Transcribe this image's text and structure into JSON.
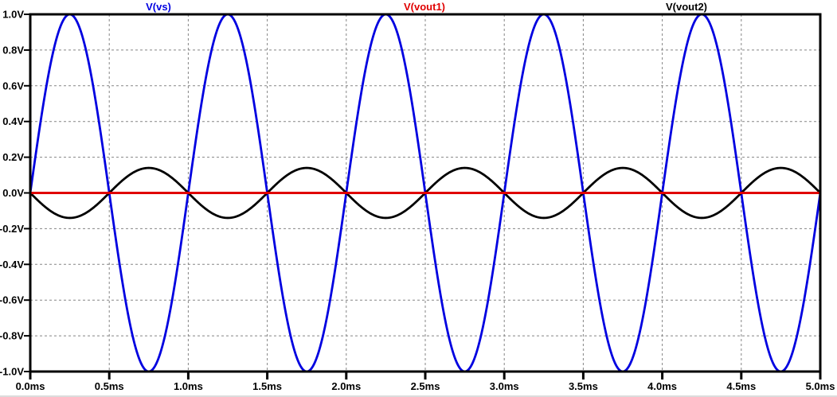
{
  "chart_data": {
    "type": "line",
    "title": "",
    "x_axis": {
      "unit": "ms",
      "min": 0,
      "max": 5,
      "tick_values": [
        0,
        0.5,
        1.0,
        1.5,
        2.0,
        2.5,
        3.0,
        3.5,
        4.0,
        4.5,
        5.0
      ],
      "tick_labels": [
        "0.0ms",
        "0.5ms",
        "1.0ms",
        "1.5ms",
        "2.0ms",
        "2.5ms",
        "3.0ms",
        "3.5ms",
        "4.0ms",
        "4.5ms",
        "5.0ms"
      ]
    },
    "y_axis": {
      "unit": "V",
      "min": -1.0,
      "max": 1.0,
      "tick_values": [
        1.0,
        0.8,
        0.6,
        0.4,
        0.2,
        0.0,
        -0.2,
        -0.4,
        -0.6,
        -0.8,
        -1.0
      ],
      "tick_labels": [
        "1.0V",
        "0.8V",
        "0.6V",
        "0.4V",
        "0.2V",
        "0.0V",
        "-0.2V",
        "-0.4V",
        "-0.6V",
        "-0.8V",
        "-1.0V"
      ]
    },
    "grid": {
      "show": true,
      "style": "dashed",
      "color": "#858585"
    },
    "legend_position": "top",
    "series": [
      {
        "name": "V(vs)",
        "color": "#0000e0",
        "waveform": "sine",
        "amplitude_v": 1.0,
        "offset_v": 0.0,
        "period_ms": 1.0,
        "phase_deg": 0,
        "cycles_shown": 5
      },
      {
        "name": "V(vout1)",
        "color": "#e00000",
        "waveform": "constant",
        "amplitude_v": 0.0,
        "offset_v": 0.0,
        "period_ms": 1.0,
        "phase_deg": 0,
        "cycles_shown": 0
      },
      {
        "name": "V(vout2)",
        "color": "#000000",
        "waveform": "sine",
        "amplitude_v": 0.14,
        "offset_v": 0.0,
        "period_ms": 1.0,
        "phase_deg": 180,
        "cycles_shown": 5
      }
    ],
    "frame_color": "#000000",
    "background_color": "#ffffff"
  }
}
